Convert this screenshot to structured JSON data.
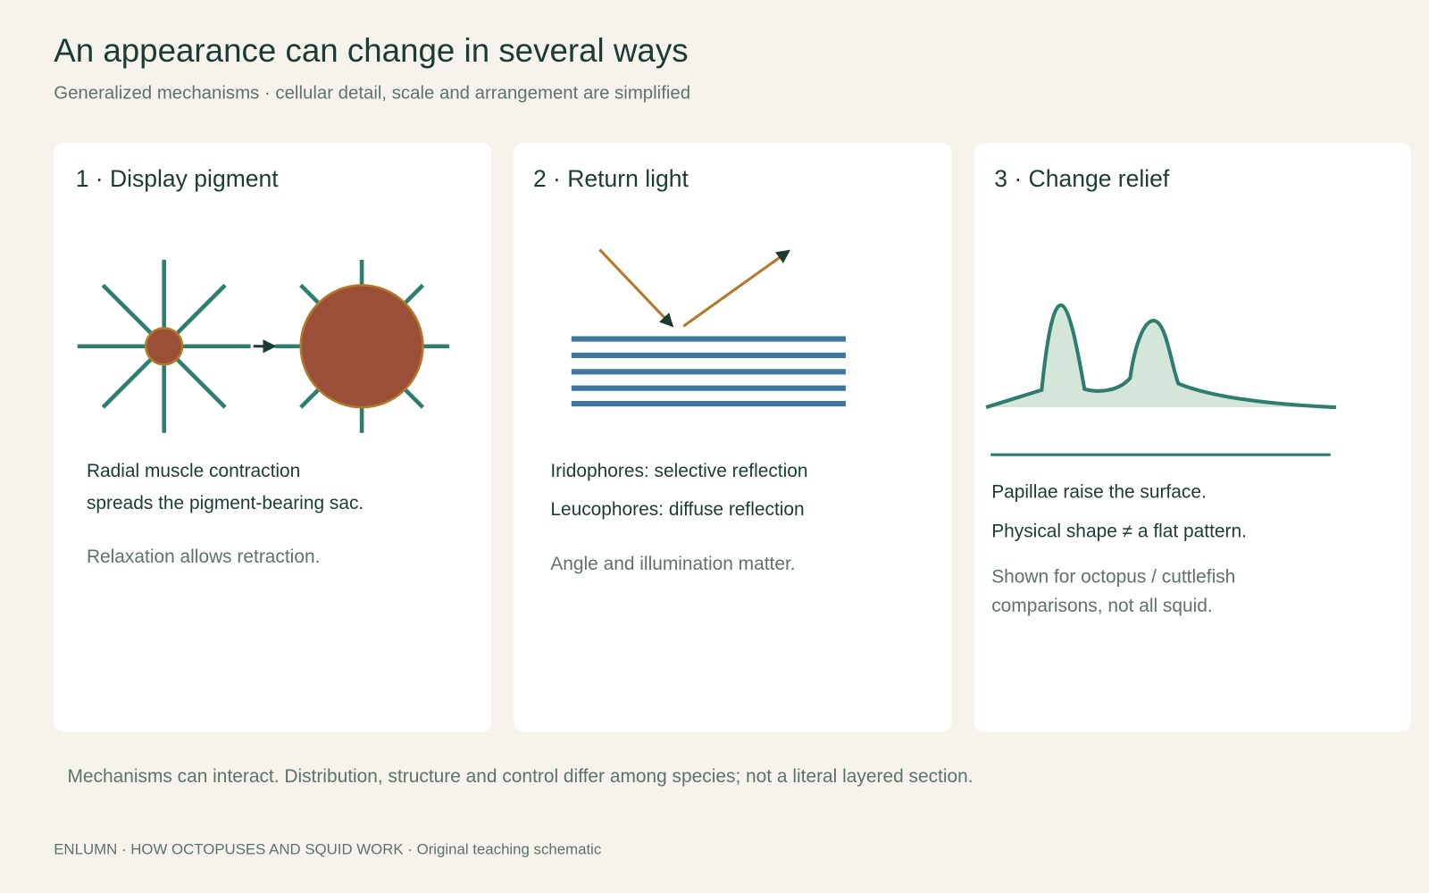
{
  "header": {
    "title": "An appearance can change in several ways",
    "subtitle": "Generalized mechanisms · cellular detail, scale and arrangement are simplified"
  },
  "panels": [
    {
      "title": "1 · Display pigment",
      "lines": [
        "Radial muscle contraction",
        "spreads the pigment-bearing sac."
      ],
      "notes": [
        "Relaxation allows retraction."
      ]
    },
    {
      "title": "2 · Return light",
      "lines": [
        "Iridophores: selective reflection",
        "Leucophores: diffuse reflection"
      ],
      "notes": [
        "Angle and illumination matter."
      ]
    },
    {
      "title": "3 · Change relief",
      "lines": [
        "Papillae raise the surface.",
        "Physical shape ≠ a flat pattern."
      ],
      "notes": [
        "Shown for octopus / cuttlefish",
        "comparisons, not all squid."
      ]
    }
  ],
  "footnote": "Mechanisms can interact. Distribution, structure and control differ among species; not a literal layered section.",
  "footer": "ENLUMN · HOW OCTOPUSES AND SQUID WORK · Original teaching schematic"
}
